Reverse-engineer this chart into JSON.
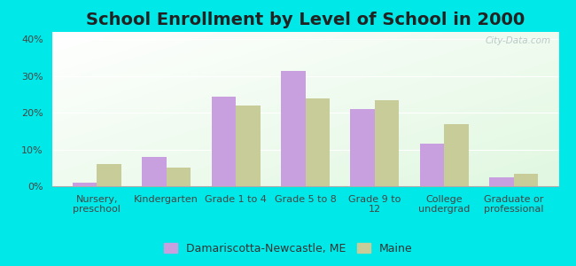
{
  "title": "School Enrollment by Level of School in 2000",
  "categories": [
    "Nursery,\npreschool",
    "Kindergarten",
    "Grade 1 to 4",
    "Grade 5 to 8",
    "Grade 9 to\n12",
    "College\nundergrad",
    "Graduate or\nprofessional"
  ],
  "damariscotta_values": [
    1.0,
    8.0,
    24.5,
    31.5,
    21.0,
    11.5,
    2.5
  ],
  "maine_values": [
    6.0,
    5.0,
    22.0,
    24.0,
    23.5,
    17.0,
    3.5
  ],
  "damariscotta_color": "#c8a0e0",
  "maine_color": "#c8cc98",
  "background_color": "#00e8e8",
  "ylim": [
    0,
    42
  ],
  "yticks": [
    0,
    10,
    20,
    30,
    40
  ],
  "ytick_labels": [
    "0%",
    "10%",
    "20%",
    "30%",
    "40%"
  ],
  "bar_width": 0.35,
  "legend_label1": "Damariscotta-Newcastle, ME",
  "legend_label2": "Maine",
  "title_fontsize": 14,
  "tick_fontsize": 8,
  "legend_fontsize": 9,
  "watermark": "City-Data.com"
}
